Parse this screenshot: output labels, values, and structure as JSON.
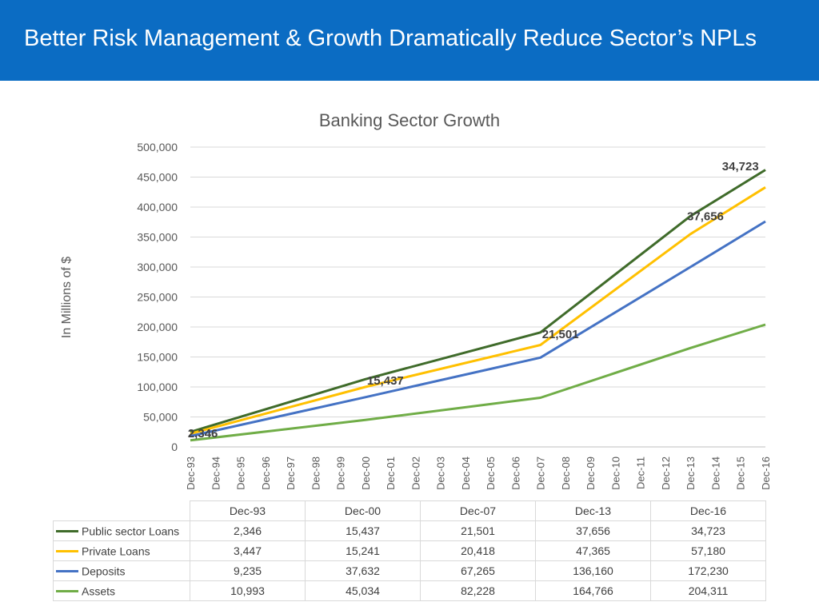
{
  "header": {
    "title": "Better Risk Management & Growth Dramatically Reduce Sector’s NPLs"
  },
  "chart_data": {
    "type": "line",
    "title": "Banking Sector Growth",
    "ylabel": "In Millions of $",
    "xlabel": "",
    "ylim": [
      0,
      500000
    ],
    "yticks": [
      0,
      50000,
      100000,
      150000,
      200000,
      250000,
      300000,
      350000,
      400000,
      450000,
      500000
    ],
    "ytick_labels": [
      "0",
      "50,000",
      "100,000",
      "150,000",
      "200,000",
      "250,000",
      "300,000",
      "350,000",
      "400,000",
      "450,000",
      "500,000"
    ],
    "grid": true,
    "categories": [
      "Dec-93",
      "Dec-94",
      "Dec-95",
      "Dec-96",
      "Dec-97",
      "Dec-98",
      "Dec-99",
      "Dec-00",
      "Dec-01",
      "Dec-02",
      "Dec-03",
      "Dec-04",
      "Dec-05",
      "Dec-06",
      "Dec-07",
      "Dec-08",
      "Dec-09",
      "Dec-10",
      "Dec-11",
      "Dec-12",
      "Dec-13",
      "Dec-14",
      "Dec-15",
      "Dec-16"
    ],
    "series": [
      {
        "name": "Public sector Loans",
        "color": "#3f6b2a",
        "points": [
          {
            "x": 0,
            "y": 25000
          },
          {
            "x": 7,
            "y": 113000
          },
          {
            "x": 14,
            "y": 191000
          },
          {
            "x": 20,
            "y": 385000
          },
          {
            "x": 23,
            "y": 462000
          }
        ]
      },
      {
        "name": "Private Loans",
        "color": "#ffc000",
        "points": [
          {
            "x": 0,
            "y": 22000
          },
          {
            "x": 7,
            "y": 100000
          },
          {
            "x": 14,
            "y": 170000
          },
          {
            "x": 20,
            "y": 355000
          },
          {
            "x": 23,
            "y": 433000
          }
        ]
      },
      {
        "name": "Deposits",
        "color": "#4472c4",
        "points": [
          {
            "x": 0,
            "y": 18000
          },
          {
            "x": 7,
            "y": 83000
          },
          {
            "x": 14,
            "y": 149000
          },
          {
            "x": 20,
            "y": 300000
          },
          {
            "x": 23,
            "y": 376000
          }
        ]
      },
      {
        "name": "Assets",
        "color": "#70ad47",
        "points": [
          {
            "x": 0,
            "y": 11000
          },
          {
            "x": 7,
            "y": 45000
          },
          {
            "x": 14,
            "y": 82000
          },
          {
            "x": 20,
            "y": 165000
          },
          {
            "x": 23,
            "y": 204000
          }
        ]
      }
    ],
    "annotations": [
      {
        "text": "2,346",
        "x": 0.5,
        "y": 23000
      },
      {
        "text": "15,437",
        "x": 7.8,
        "y": 111000
      },
      {
        "text": "21,501",
        "x": 14.8,
        "y": 188000
      },
      {
        "text": "37,656",
        "x": 20.6,
        "y": 385000
      },
      {
        "text": "34,723",
        "x": 22,
        "y": 468000
      }
    ],
    "table": {
      "columns": [
        "Dec-93",
        "Dec-00",
        "Dec-07",
        "Dec-13",
        "Dec-16"
      ],
      "rows": [
        {
          "name": "Public sector Loans",
          "color": "#3f6b2a",
          "values": [
            "2,346",
            "15,437",
            "21,501",
            "37,656",
            "34,723"
          ]
        },
        {
          "name": "Private Loans",
          "color": "#ffc000",
          "values": [
            "3,447",
            "15,241",
            "20,418",
            "47,365",
            "57,180"
          ]
        },
        {
          "name": "Deposits",
          "color": "#4472c4",
          "values": [
            "9,235",
            "37,632",
            "67,265",
            "136,160",
            "172,230"
          ]
        },
        {
          "name": "Assets",
          "color": "#70ad47",
          "values": [
            "10,993",
            "45,034",
            "82,228",
            "164,766",
            "204,311"
          ]
        }
      ]
    }
  }
}
